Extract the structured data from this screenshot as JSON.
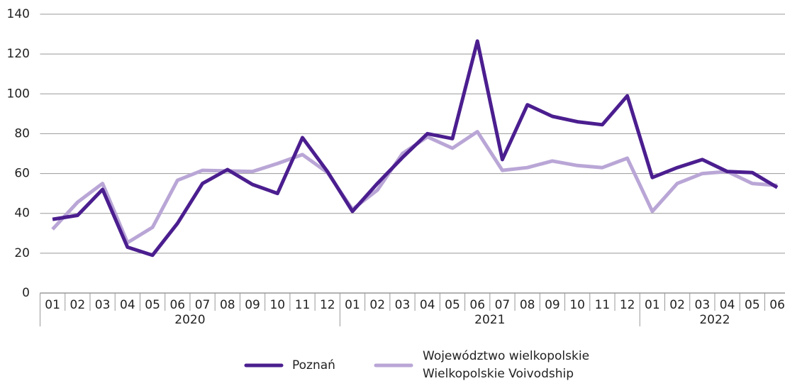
{
  "chart_data": {
    "type": "line",
    "categories": [
      "01",
      "02",
      "03",
      "04",
      "05",
      "06",
      "07",
      "08",
      "09",
      "10",
      "11",
      "12",
      "01",
      "02",
      "03",
      "04",
      "05",
      "06",
      "07",
      "08",
      "09",
      "10",
      "11",
      "12",
      "01",
      "02",
      "03",
      "04",
      "05",
      "06"
    ],
    "category_groups": [
      "2020",
      "2021",
      "2022"
    ],
    "series": [
      {
        "name": "Poznań",
        "color": "#4b1e8f",
        "values": [
          37,
          39,
          52,
          23,
          19,
          35,
          55,
          62,
          54.5,
          50,
          78,
          61,
          41,
          55,
          68,
          80,
          77.5,
          126.5,
          67,
          94.5,
          88.7,
          86,
          84.5,
          99,
          58,
          63,
          67,
          61,
          60.5,
          53
        ]
      },
      {
        "name": "Województwo wielkopolskie",
        "subname": "Wielkopolskie Voivodship",
        "color": "#b9a6d6",
        "values": [
          32,
          45.6,
          55,
          25.3,
          33,
          56.6,
          61.6,
          61.3,
          61,
          65,
          69.5,
          60.5,
          42,
          51.7,
          70,
          78.4,
          72.7,
          81,
          61.6,
          63,
          66.3,
          64,
          63,
          67.7,
          41,
          55,
          60,
          61,
          55,
          54
        ]
      }
    ],
    "ylim": [
      0,
      140
    ],
    "yticks": [
      0,
      20,
      40,
      60,
      80,
      100,
      120,
      140
    ],
    "grid": true
  }
}
